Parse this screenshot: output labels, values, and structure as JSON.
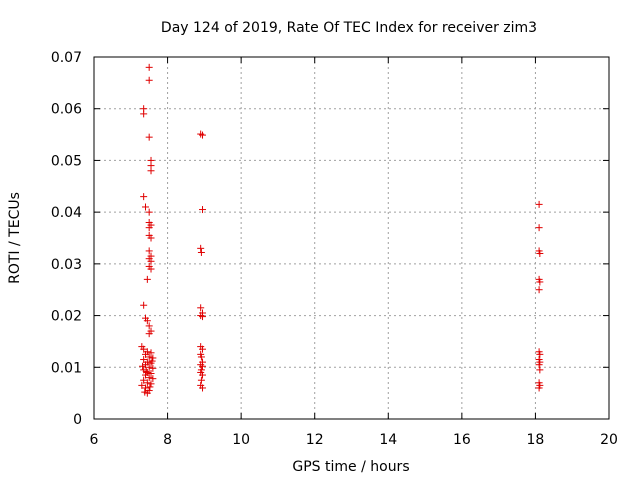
{
  "chart_data": {
    "type": "scatter",
    "title": "Day 124 of 2019, Rate Of TEC Index for receiver zim3",
    "xlabel": "GPS time / hours",
    "ylabel": "ROTI / TECUs",
    "xlim": [
      6,
      20
    ],
    "ylim": [
      0,
      0.07
    ],
    "xticks": [
      "6",
      "8",
      "10",
      "12",
      "14",
      "16",
      "18",
      "20"
    ],
    "yticks": [
      "0",
      "0.01",
      "0.02",
      "0.03",
      "0.04",
      "0.05",
      "0.06",
      "0.07"
    ],
    "grid": true,
    "marker": "+",
    "color": "#e00000",
    "series": [
      {
        "points": [
          [
            7.5,
            0.068
          ],
          [
            7.5,
            0.0655
          ],
          [
            7.35,
            0.06
          ],
          [
            7.35,
            0.059
          ],
          [
            7.5,
            0.0545
          ],
          [
            7.55,
            0.05
          ],
          [
            7.55,
            0.049
          ],
          [
            7.55,
            0.048
          ],
          [
            7.35,
            0.043
          ],
          [
            7.4,
            0.041
          ],
          [
            7.5,
            0.04
          ],
          [
            7.5,
            0.038
          ],
          [
            7.55,
            0.0375
          ],
          [
            7.5,
            0.037
          ],
          [
            7.5,
            0.0355
          ],
          [
            7.55,
            0.035
          ],
          [
            7.5,
            0.0325
          ],
          [
            7.55,
            0.0315
          ],
          [
            7.5,
            0.031
          ],
          [
            7.55,
            0.0305
          ],
          [
            7.5,
            0.0295
          ],
          [
            7.55,
            0.029
          ],
          [
            7.45,
            0.027
          ],
          [
            7.35,
            0.022
          ],
          [
            7.4,
            0.0195
          ],
          [
            7.45,
            0.019
          ],
          [
            7.5,
            0.018
          ],
          [
            7.55,
            0.017
          ],
          [
            7.5,
            0.0165
          ],
          [
            7.3,
            0.014
          ],
          [
            7.35,
            0.0135
          ],
          [
            7.45,
            0.013
          ],
          [
            7.55,
            0.0128
          ],
          [
            7.4,
            0.0125
          ],
          [
            7.5,
            0.012
          ],
          [
            7.6,
            0.0118
          ],
          [
            7.35,
            0.0115
          ],
          [
            7.45,
            0.011
          ],
          [
            7.55,
            0.0108
          ],
          [
            7.4,
            0.0105
          ],
          [
            7.5,
            0.01
          ],
          [
            7.6,
            0.0098
          ],
          [
            7.35,
            0.0095
          ],
          [
            7.45,
            0.009
          ],
          [
            7.55,
            0.0088
          ],
          [
            7.4,
            0.0085
          ],
          [
            7.5,
            0.008
          ],
          [
            7.6,
            0.0078
          ],
          [
            7.35,
            0.0075
          ],
          [
            7.45,
            0.007
          ],
          [
            7.55,
            0.0068
          ],
          [
            7.3,
            0.0065
          ],
          [
            7.4,
            0.006
          ],
          [
            7.5,
            0.0055
          ],
          [
            7.45,
            0.005
          ],
          [
            7.38,
            0.0052
          ],
          [
            7.52,
            0.0062
          ],
          [
            7.42,
            0.0092
          ],
          [
            7.58,
            0.0112
          ],
          [
            7.32,
            0.0102
          ],
          [
            8.9,
            0.0551
          ],
          [
            8.95,
            0.0549
          ],
          [
            8.95,
            0.0405
          ],
          [
            8.9,
            0.033
          ],
          [
            8.92,
            0.0322
          ],
          [
            8.9,
            0.0215
          ],
          [
            8.95,
            0.0205
          ],
          [
            8.9,
            0.02
          ],
          [
            8.95,
            0.0198
          ],
          [
            8.9,
            0.014
          ],
          [
            8.95,
            0.0135
          ],
          [
            8.9,
            0.0125
          ],
          [
            8.92,
            0.012
          ],
          [
            8.95,
            0.011
          ],
          [
            8.9,
            0.0105
          ],
          [
            8.95,
            0.0102
          ],
          [
            8.92,
            0.0095
          ],
          [
            8.9,
            0.009
          ],
          [
            8.95,
            0.0085
          ],
          [
            8.92,
            0.0075
          ],
          [
            8.9,
            0.0065
          ],
          [
            8.95,
            0.006
          ],
          [
            18.1,
            0.0415
          ],
          [
            18.1,
            0.037
          ],
          [
            18.1,
            0.0325
          ],
          [
            18.12,
            0.032
          ],
          [
            18.1,
            0.027
          ],
          [
            18.12,
            0.0265
          ],
          [
            18.1,
            0.025
          ],
          [
            18.1,
            0.013
          ],
          [
            18.12,
            0.0125
          ],
          [
            18.1,
            0.0115
          ],
          [
            18.12,
            0.011
          ],
          [
            18.1,
            0.0105
          ],
          [
            18.12,
            0.0095
          ],
          [
            18.1,
            0.007
          ],
          [
            18.12,
            0.0065
          ],
          [
            18.1,
            0.006
          ]
        ]
      }
    ]
  }
}
